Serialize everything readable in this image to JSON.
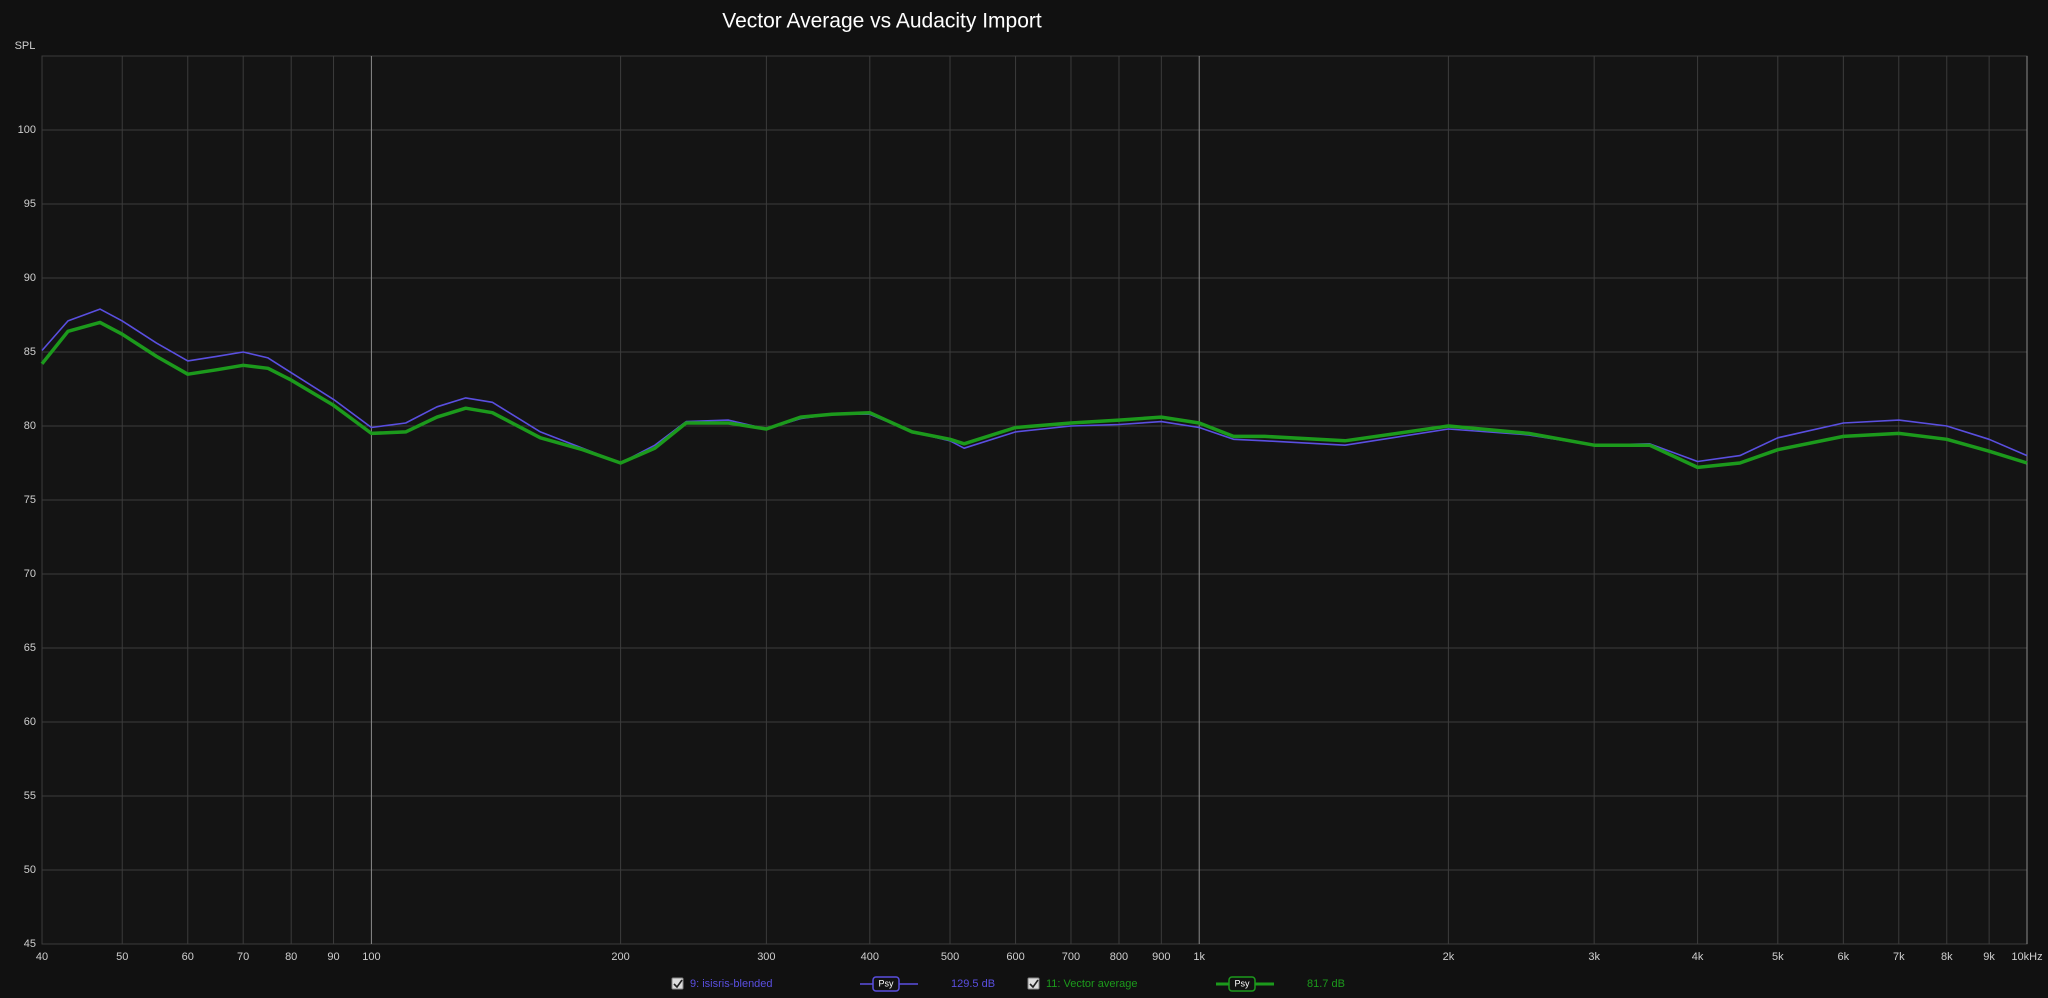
{
  "chart_data": {
    "type": "line",
    "title": "Vector Average vs Audacity Import",
    "y_label": "SPL",
    "x_scale": "log",
    "grid": true,
    "xlim": [
      40,
      10000
    ],
    "ylim": [
      45,
      105
    ],
    "xticks": [
      40,
      50,
      60,
      70,
      80,
      90,
      100,
      200,
      300,
      400,
      500,
      600,
      700,
      800,
      900,
      {
        "value": 1000,
        "label": "1k"
      },
      {
        "value": 2000,
        "label": "2k"
      },
      {
        "value": 3000,
        "label": "3k"
      },
      {
        "value": 4000,
        "label": "4k"
      },
      {
        "value": 5000,
        "label": "5k"
      },
      {
        "value": 6000,
        "label": "6k"
      },
      {
        "value": 7000,
        "label": "7k"
      },
      {
        "value": 8000,
        "label": "8k"
      },
      {
        "value": 9000,
        "label": "9k"
      },
      {
        "value": 10000,
        "label": "10kHz"
      }
    ],
    "yticks": [
      45,
      50,
      55,
      60,
      65,
      70,
      75,
      80,
      85,
      90,
      95,
      100
    ],
    "x": [
      40,
      43,
      47,
      50,
      55,
      60,
      65,
      70,
      75,
      80,
      90,
      100,
      110,
      120,
      130,
      140,
      160,
      180,
      200,
      220,
      240,
      270,
      300,
      330,
      360,
      400,
      450,
      500,
      520,
      600,
      700,
      800,
      900,
      1000,
      1100,
      1200,
      1500,
      2000,
      2500,
      3000,
      3500,
      4000,
      4500,
      5000,
      6000,
      7000,
      8000,
      9000,
      10000
    ],
    "series": [
      {
        "name": "9: isisris-blended",
        "smoothing": "Psy",
        "level": "129.5 dB",
        "color": "#5a4fe0",
        "width": 1.6,
        "values": [
          85.1,
          87.1,
          87.9,
          87.1,
          85.6,
          84.4,
          84.7,
          85.0,
          84.6,
          83.6,
          81.8,
          79.9,
          80.2,
          81.3,
          81.9,
          81.6,
          79.6,
          78.5,
          77.5,
          78.7,
          80.3,
          80.4,
          79.8,
          80.5,
          80.8,
          80.8,
          79.6,
          79.0,
          78.5,
          79.6,
          80.0,
          80.1,
          80.3,
          79.9,
          79.1,
          79.0,
          78.7,
          79.8,
          79.4,
          78.7,
          78.8,
          77.6,
          78.0,
          79.2,
          80.2,
          80.4,
          80.0,
          79.1,
          78.0
        ]
      },
      {
        "name": "11: Vector average",
        "smoothing": "Psy",
        "level": "81.7 dB",
        "color": "#1c9a1c",
        "width": 3.5,
        "values": [
          84.2,
          86.4,
          87.0,
          86.2,
          84.7,
          83.5,
          83.8,
          84.1,
          83.9,
          83.1,
          81.4,
          79.5,
          79.6,
          80.6,
          81.2,
          80.9,
          79.2,
          78.4,
          77.5,
          78.5,
          80.2,
          80.2,
          79.8,
          80.6,
          80.8,
          80.9,
          79.6,
          79.1,
          78.8,
          79.9,
          80.2,
          80.4,
          80.6,
          80.2,
          79.3,
          79.3,
          79.0,
          80.0,
          79.5,
          78.7,
          78.7,
          77.2,
          77.5,
          78.4,
          79.3,
          79.5,
          79.1,
          78.3,
          77.5
        ]
      }
    ]
  }
}
